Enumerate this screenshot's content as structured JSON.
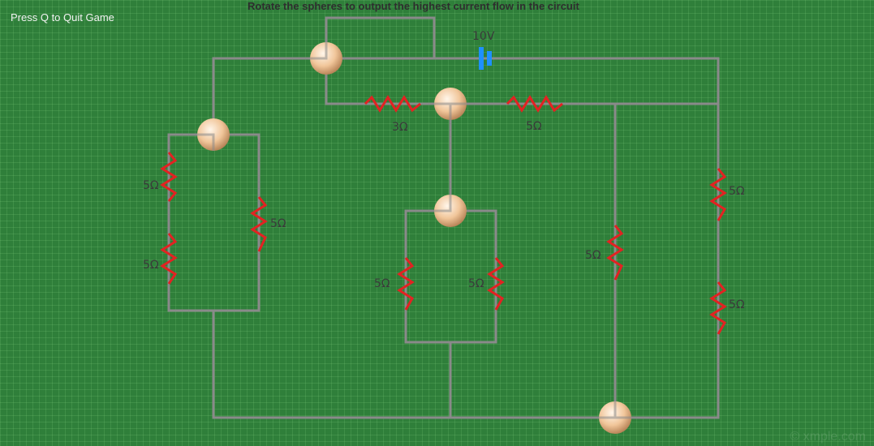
{
  "hud": {
    "quit_hint": "Press Q to Quit Game",
    "instruction": "Rotate the spheres to output the highest current flow in the circuit",
    "watermark": "© xmple.com"
  },
  "battery": {
    "label": "10V",
    "color": "#1e90ff"
  },
  "resistors": {
    "top_left": "3Ω",
    "top_right": "5Ω",
    "left_outer_upper": "5Ω",
    "left_outer_lower": "5Ω",
    "left_inner": "5Ω",
    "center_left": "5Ω",
    "center_right": "5Ω",
    "right_middle": "5Ω",
    "far_right_upper": "5Ω",
    "far_right_lower": "5Ω"
  },
  "colors": {
    "background": "#2f7f3a",
    "wire": "#8a8a8a",
    "resistor": "#e32222",
    "sphere": "#f1c69a"
  }
}
